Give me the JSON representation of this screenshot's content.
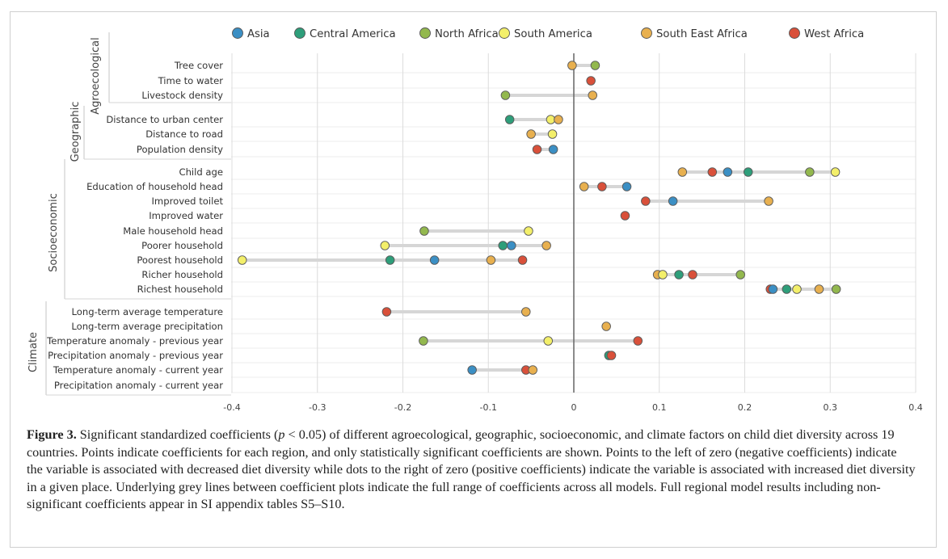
{
  "chart_data": {
    "type": "scatter",
    "xlim": [
      -0.4,
      0.4
    ],
    "xticks": [
      -0.4,
      -0.3,
      -0.2,
      -0.1,
      0,
      0.1,
      0.2,
      0.3,
      0.4
    ],
    "xtick_labels": [
      "-0.4",
      "-0.3",
      "-0.2",
      "-0.1",
      "0",
      "0.1",
      "0.2",
      "0.3",
      "0.4"
    ],
    "grid": true,
    "legend_position": "top",
    "legend": [
      {
        "name": "Asia",
        "color": "#3b8fc4"
      },
      {
        "name": "Central America",
        "color": "#2e9e7a"
      },
      {
        "name": "North Africa",
        "color": "#93b84e"
      },
      {
        "name": "South America",
        "color": "#f3ef6a"
      },
      {
        "name": "South East Africa",
        "color": "#e8b04f"
      },
      {
        "name": "West Africa",
        "color": "#d9503a"
      }
    ],
    "groups": [
      {
        "label": "Agroecological",
        "rows": [
          0,
          2
        ]
      },
      {
        "label": "Geographic",
        "rows": [
          3,
          5
        ]
      },
      {
        "label": "Socioeconomic",
        "rows": [
          6,
          14
        ]
      },
      {
        "label": "Climate",
        "rows": [
          15,
          20
        ]
      }
    ],
    "rows": [
      {
        "label": "Tree cover",
        "points": [
          {
            "s": "South East Africa",
            "v": -0.002
          },
          {
            "s": "North Africa",
            "v": 0.025
          }
        ],
        "range": [
          -0.002,
          0.025
        ]
      },
      {
        "label": "Time to water",
        "points": [
          {
            "s": "West Africa",
            "v": 0.02
          }
        ],
        "range": null
      },
      {
        "label": "Livestock density",
        "points": [
          {
            "s": "North Africa",
            "v": -0.08
          },
          {
            "s": "South East Africa",
            "v": 0.022
          }
        ],
        "range": [
          -0.08,
          0.022
        ]
      },
      {
        "label": "Distance to urban center",
        "points": [
          {
            "s": "Central America",
            "v": -0.075
          },
          {
            "s": "South America",
            "v": -0.027
          },
          {
            "s": "South East Africa",
            "v": -0.018
          }
        ],
        "range": [
          -0.075,
          -0.018
        ]
      },
      {
        "label": "Distance to road",
        "points": [
          {
            "s": "South East Africa",
            "v": -0.05
          },
          {
            "s": "South America",
            "v": -0.025
          }
        ],
        "range": [
          -0.05,
          -0.025
        ]
      },
      {
        "label": "Population density",
        "points": [
          {
            "s": "West Africa",
            "v": -0.043
          },
          {
            "s": "Asia",
            "v": -0.024
          }
        ],
        "range": [
          -0.043,
          -0.024
        ]
      },
      {
        "label": "Child age",
        "points": [
          {
            "s": "South East Africa",
            "v": 0.127
          },
          {
            "s": "West Africa",
            "v": 0.162
          },
          {
            "s": "Asia",
            "v": 0.18
          },
          {
            "s": "Central America",
            "v": 0.204
          },
          {
            "s": "North Africa",
            "v": 0.276
          },
          {
            "s": "South America",
            "v": 0.306
          }
        ],
        "range": [
          0.127,
          0.306
        ]
      },
      {
        "label": "Education of household head",
        "points": [
          {
            "s": "South East Africa",
            "v": 0.012
          },
          {
            "s": "West Africa",
            "v": 0.033
          },
          {
            "s": "Asia",
            "v": 0.062
          }
        ],
        "range": [
          0.012,
          0.062
        ]
      },
      {
        "label": "Improved toilet",
        "points": [
          {
            "s": "West Africa",
            "v": 0.084
          },
          {
            "s": "Asia",
            "v": 0.116
          },
          {
            "s": "South East Africa",
            "v": 0.228
          }
        ],
        "range": [
          0.084,
          0.228
        ]
      },
      {
        "label": "Improved water",
        "points": [
          {
            "s": "West Africa",
            "v": 0.06
          }
        ],
        "range": null
      },
      {
        "label": "Male household head",
        "points": [
          {
            "s": "North Africa",
            "v": -0.175
          },
          {
            "s": "South America",
            "v": -0.053
          }
        ],
        "range": [
          -0.175,
          -0.053
        ]
      },
      {
        "label": "Poorer household",
        "points": [
          {
            "s": "South America",
            "v": -0.221
          },
          {
            "s": "Central America",
            "v": -0.083
          },
          {
            "s": "Asia",
            "v": -0.073
          },
          {
            "s": "South East Africa",
            "v": -0.032
          }
        ],
        "range": [
          -0.221,
          -0.032
        ]
      },
      {
        "label": "Poorest household",
        "points": [
          {
            "s": "South America",
            "v": -0.388
          },
          {
            "s": "Central America",
            "v": -0.215
          },
          {
            "s": "Asia",
            "v": -0.163
          },
          {
            "s": "South East Africa",
            "v": -0.097
          },
          {
            "s": "West Africa",
            "v": -0.06
          }
        ],
        "range": [
          -0.388,
          -0.06
        ]
      },
      {
        "label": "Richer household",
        "points": [
          {
            "s": "South East Africa",
            "v": 0.098
          },
          {
            "s": "South America",
            "v": 0.104
          },
          {
            "s": "Central America",
            "v": 0.123
          },
          {
            "s": "West Africa",
            "v": 0.139
          },
          {
            "s": "North Africa",
            "v": 0.195
          }
        ],
        "range": [
          0.098,
          0.195
        ]
      },
      {
        "label": "Richest household",
        "points": [
          {
            "s": "West Africa",
            "v": 0.23
          },
          {
            "s": "Asia",
            "v": 0.233
          },
          {
            "s": "Central America",
            "v": 0.249
          },
          {
            "s": "South America",
            "v": 0.261
          },
          {
            "s": "South East Africa",
            "v": 0.287
          },
          {
            "s": "North Africa",
            "v": 0.307
          }
        ],
        "range": [
          0.23,
          0.307
        ]
      },
      {
        "label": "Long-term average temperature",
        "points": [
          {
            "s": "West Africa",
            "v": -0.219
          },
          {
            "s": "South East Africa",
            "v": -0.056
          }
        ],
        "range": [
          -0.219,
          -0.056
        ]
      },
      {
        "label": "Long-term average precipitation",
        "points": [
          {
            "s": "South East Africa",
            "v": 0.038
          }
        ],
        "range": null
      },
      {
        "label": "Temperature anomaly - previous year",
        "points": [
          {
            "s": "North Africa",
            "v": -0.176
          },
          {
            "s": "South America",
            "v": -0.03
          },
          {
            "s": "West Africa",
            "v": 0.075
          }
        ],
        "range": [
          -0.176,
          0.075
        ]
      },
      {
        "label": "Precipitation anomaly - previous year",
        "points": [
          {
            "s": "Central America",
            "v": 0.041
          },
          {
            "s": "West Africa",
            "v": 0.044
          }
        ],
        "range": [
          0.041,
          0.044
        ]
      },
      {
        "label": "Temperature anomaly - current year",
        "points": [
          {
            "s": "Asia",
            "v": -0.119
          },
          {
            "s": "West Africa",
            "v": -0.056
          },
          {
            "s": "South East Africa",
            "v": -0.048
          }
        ],
        "range": [
          -0.119,
          -0.048
        ]
      },
      {
        "label": "Precipitation anomaly - current year",
        "points": [],
        "range": null
      }
    ]
  },
  "caption": {
    "figure_label": "Figure 3.",
    "text_before_p": " Significant standardized coefficients (",
    "p_symbol": "p",
    "text_after_p": " < 0.05) of different agroecological, geographic, socioeconomic, and climate factors on child diet diversity across 19 countries. Points indicate coefficients for each region, and only statistically significant coefficients are shown. Points to the left of zero (negative coefficients) indicate the variable is associated with decreased diet diversity while dots to the right of zero (positive coefficients) indicate the variable is associated with increased diet diversity in a given place. Underlying grey lines between coefficient plots indicate the full range of coefficients across all models. Full regional model results including non-significant coefficients appear in SI appendix tables S5–S10."
  }
}
